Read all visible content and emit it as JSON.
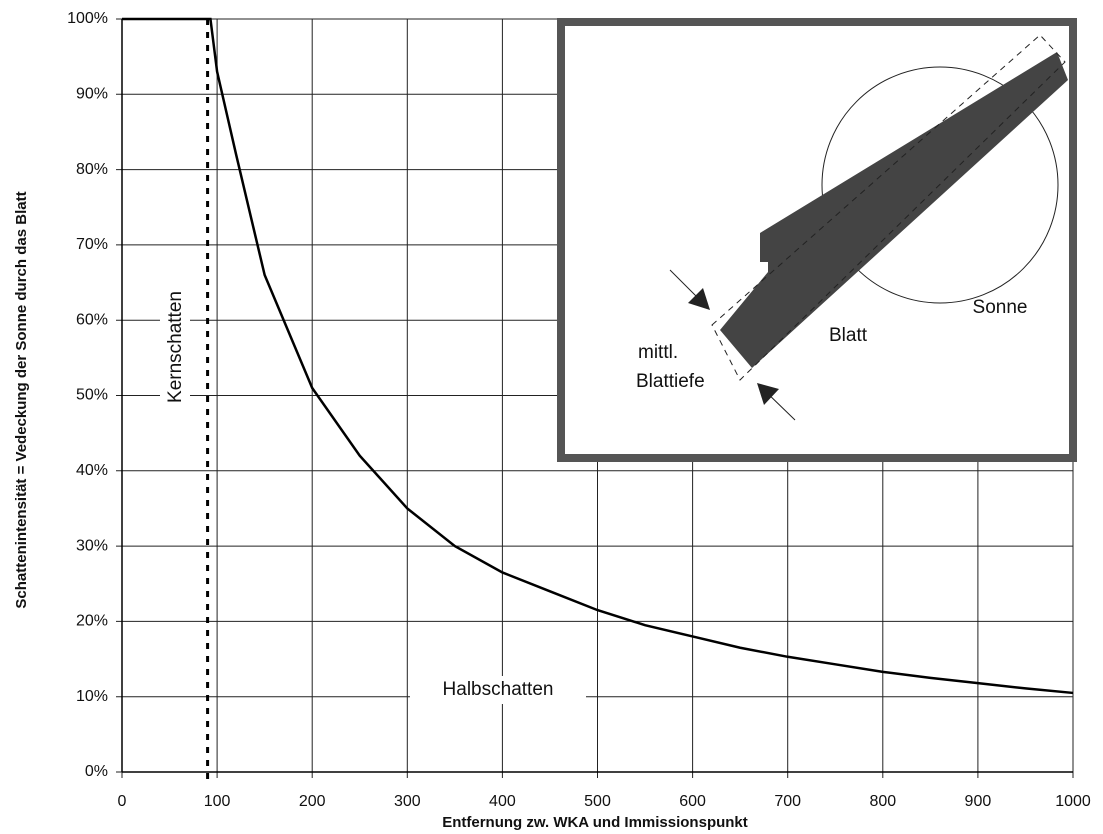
{
  "chart_data": {
    "type": "line",
    "x_label": "Entfernung zw. WKA und Immissionspunkt",
    "y_label": "Schattenintensität  = Vedeckung der Sonne durch das Blatt",
    "x": [
      0,
      50,
      93,
      100,
      120,
      150,
      200,
      250,
      300,
      350,
      400,
      450,
      500,
      550,
      600,
      650,
      700,
      750,
      800,
      850,
      900,
      950,
      1000
    ],
    "series": [
      {
        "color": "#000000",
        "values": [
          100,
          100,
          100,
          93,
          82,
          66,
          51,
          42,
          35,
          30,
          26.5,
          24,
          21.5,
          19.5,
          18,
          16.5,
          15.3,
          14.3,
          13.3,
          12.5,
          11.8,
          11.1,
          10.5
        ]
      }
    ],
    "xlim": [
      0,
      1000
    ],
    "xticks": [
      0,
      100,
      200,
      300,
      400,
      500,
      600,
      700,
      800,
      900,
      1000
    ],
    "ylim": [
      0,
      100
    ],
    "yticks": [
      {
        "value": 0,
        "label": "0%"
      },
      {
        "value": 10,
        "label": "10%"
      },
      {
        "value": 20,
        "label": "20%"
      },
      {
        "value": 30,
        "label": "30%"
      },
      {
        "value": 40,
        "label": "40%"
      },
      {
        "value": 50,
        "label": "50%"
      },
      {
        "value": 60,
        "label": "60%"
      },
      {
        "value": 70,
        "label": "70%"
      },
      {
        "value": 80,
        "label": "80%"
      },
      {
        "value": 90,
        "label": "90%"
      },
      {
        "value": 100,
        "label": "100%"
      }
    ],
    "grid": true,
    "annotations": [
      {
        "text": "Kernschatten",
        "x": 90
      },
      {
        "text": "Halbschatten"
      }
    ],
    "inset_labels": [
      "Sonne",
      "Blatt",
      "mittl.",
      "Blattiefe"
    ]
  }
}
